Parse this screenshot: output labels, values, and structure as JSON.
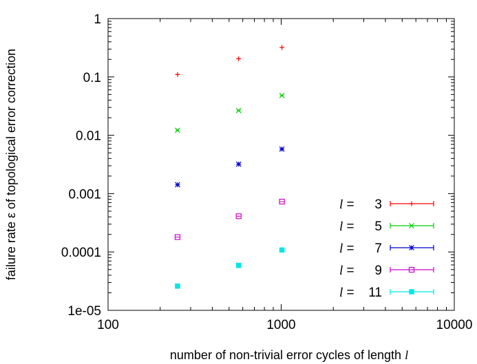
{
  "chart_data": {
    "type": "scatter",
    "xlabel": "number of non-trivial error cycles of length l",
    "ylabel": "failure rate ε of topological error correction",
    "xscale": "log",
    "yscale": "log",
    "xlim": [
      100,
      10000
    ],
    "ylim": [
      1e-05,
      1
    ],
    "x_ticks": [
      {
        "value": 100,
        "label": "100"
      },
      {
        "value": 1000,
        "label": "1000"
      },
      {
        "value": 10000,
        "label": "10000"
      }
    ],
    "y_ticks": [
      {
        "value": 1,
        "label": "1"
      },
      {
        "value": 0.1,
        "label": "0.1"
      },
      {
        "value": 0.01,
        "label": "0.01"
      },
      {
        "value": 0.001,
        "label": "0.001"
      },
      {
        "value": 0.0001,
        "label": "0.0001"
      },
      {
        "value": 1e-05,
        "label": "1e-05"
      }
    ],
    "grid": false,
    "legend_position": "bottom-right",
    "series": [
      {
        "label_prefix": "l =",
        "label_value": "3",
        "color": "#ff0000",
        "marker": "plus",
        "x": [
          252,
          568,
          1010
        ],
        "y": [
          0.11,
          0.205,
          0.32
        ]
      },
      {
        "label_prefix": "l =",
        "label_value": "5",
        "color": "#00cc00",
        "marker": "x",
        "x": [
          252,
          568,
          1010
        ],
        "y": [
          0.0122,
          0.0265,
          0.048
        ]
      },
      {
        "label_prefix": "l =",
        "label_value": "7",
        "color": "#0000cc",
        "marker": "star",
        "x": [
          252,
          568,
          1010
        ],
        "y": [
          0.00142,
          0.0032,
          0.0058
        ]
      },
      {
        "label_prefix": "l =",
        "label_value": "9",
        "color": "#cc00cc",
        "marker": "open-square",
        "x": [
          252,
          568,
          1010
        ],
        "y": [
          0.00018,
          0.00041,
          0.00073
        ]
      },
      {
        "label_prefix": "l =",
        "label_value": "11",
        "color": "#00e5e5",
        "marker": "filled-square",
        "x": [
          252,
          568,
          1010
        ],
        "y": [
          2.6e-05,
          5.9e-05,
          0.000108
        ]
      }
    ]
  }
}
